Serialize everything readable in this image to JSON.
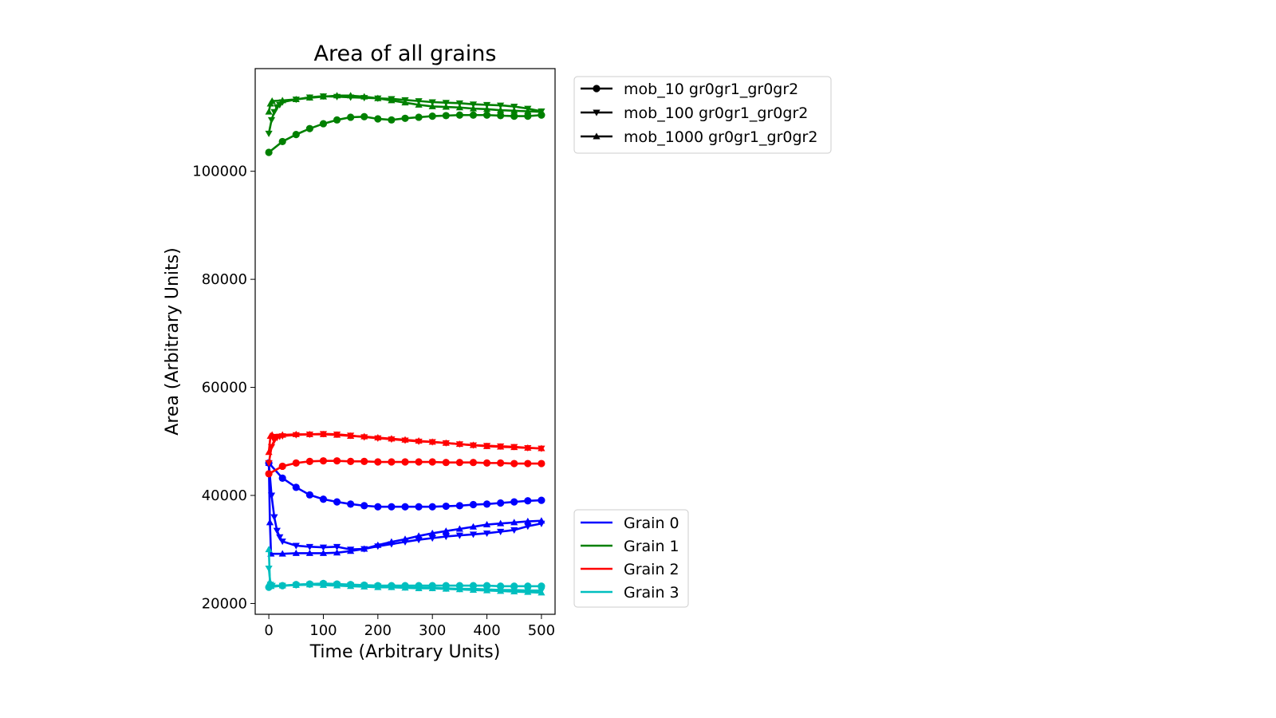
{
  "chart_data": {
    "type": "line",
    "title": "Area of all grains",
    "xlabel": "Time (Arbitrary Units)",
    "ylabel": "Area (Arbitrary Units)",
    "xlim": [
      -25,
      525
    ],
    "ylim": [
      18000,
      119000
    ],
    "xticks": [
      0,
      100,
      200,
      300,
      400,
      500
    ],
    "yticks": [
      20000,
      40000,
      60000,
      80000,
      100000
    ],
    "xtick_labels": [
      "0",
      "100",
      "200",
      "300",
      "400",
      "500"
    ],
    "ytick_labels": [
      "20000",
      "40000",
      "60000",
      "80000",
      "100000"
    ],
    "grid": false,
    "legend_runs": {
      "placement": "upper right outside",
      "entries": [
        {
          "label": "mob_10 gr0gr1_gr0gr2",
          "marker": "circle"
        },
        {
          "label": "mob_100 gr0gr1_gr0gr2",
          "marker": "triangle-down"
        },
        {
          "label": "mob_1000 gr0gr1_gr0gr2",
          "marker": "triangle-up"
        }
      ]
    },
    "legend_grains": {
      "placement": "lower right outside",
      "entries": [
        {
          "label": "Grain 0",
          "color": "#0000ff"
        },
        {
          "label": "Grain 1",
          "color": "#008000"
        },
        {
          "label": "Grain 2",
          "color": "#ff0000"
        },
        {
          "label": "Grain 3",
          "color": "#00bfbf"
        }
      ]
    },
    "series": [
      {
        "grain": "Grain 0",
        "run": "mob_10 gr0gr1_gr0gr2",
        "color": "#0000ff",
        "marker": "circle",
        "x": [
          0,
          25,
          50,
          75,
          100,
          125,
          150,
          175,
          200,
          225,
          250,
          275,
          300,
          325,
          350,
          375,
          400,
          425,
          450,
          475,
          500
        ],
        "y": [
          46000,
          43200,
          41500,
          40100,
          39300,
          38800,
          38400,
          38100,
          37900,
          37900,
          37900,
          37900,
          37900,
          38000,
          38100,
          38300,
          38400,
          38600,
          38800,
          39000,
          39100
        ]
      },
      {
        "grain": "Grain 0",
        "run": "mob_100 gr0gr1_gr0gr2",
        "color": "#0000ff",
        "marker": "triangle-down",
        "x": [
          0,
          5,
          10,
          15,
          20,
          25,
          50,
          75,
          100,
          125,
          150,
          175,
          200,
          225,
          250,
          275,
          300,
          325,
          350,
          375,
          400,
          425,
          450,
          475,
          500
        ],
        "y": [
          46000,
          40000,
          36000,
          33500,
          32300,
          31500,
          30700,
          30500,
          30400,
          30500,
          30000,
          30100,
          30600,
          31000,
          31400,
          31800,
          32100,
          32400,
          32600,
          32800,
          33000,
          33300,
          33600,
          34300,
          34800
        ]
      },
      {
        "grain": "Grain 0",
        "run": "mob_1000 gr0gr1_gr0gr2",
        "color": "#0000ff",
        "marker": "triangle-up",
        "x": [
          0,
          2,
          4,
          25,
          50,
          75,
          100,
          125,
          150,
          175,
          200,
          225,
          250,
          275,
          300,
          325,
          350,
          375,
          400,
          425,
          450,
          475,
          500
        ],
        "y": [
          46000,
          35000,
          29200,
          29200,
          29300,
          29300,
          29300,
          29400,
          29700,
          30100,
          30800,
          31400,
          31900,
          32500,
          33000,
          33400,
          33800,
          34200,
          34600,
          34800,
          35000,
          35200,
          35300
        ]
      },
      {
        "grain": "Grain 1",
        "run": "mob_10 gr0gr1_gr0gr2",
        "color": "#008000",
        "marker": "circle",
        "x": [
          0,
          25,
          50,
          75,
          100,
          125,
          150,
          175,
          200,
          225,
          250,
          275,
          300,
          325,
          350,
          375,
          400,
          425,
          450,
          475,
          500
        ],
        "y": [
          103500,
          105500,
          106800,
          107900,
          108800,
          109500,
          110000,
          110100,
          109700,
          109500,
          109800,
          110000,
          110200,
          110300,
          110400,
          110400,
          110400,
          110300,
          110200,
          110200,
          110400
        ]
      },
      {
        "grain": "Grain 1",
        "run": "mob_100 gr0gr1_gr0gr2",
        "color": "#008000",
        "marker": "triangle-down",
        "x": [
          0,
          5,
          10,
          15,
          20,
          25,
          50,
          75,
          100,
          125,
          150,
          175,
          200,
          225,
          250,
          275,
          300,
          325,
          350,
          375,
          400,
          425,
          450,
          475,
          500
        ],
        "y": [
          107000,
          109500,
          111000,
          111900,
          112300,
          112800,
          113300,
          113700,
          113900,
          113800,
          113700,
          113600,
          113500,
          113400,
          113200,
          113000,
          112800,
          112700,
          112600,
          112400,
          112300,
          112200,
          112000,
          111600,
          111100
        ]
      },
      {
        "grain": "Grain 1",
        "run": "mob_1000 gr0gr1_gr0gr2",
        "color": "#008000",
        "marker": "triangle-up",
        "x": [
          0,
          3,
          6,
          25,
          50,
          75,
          100,
          125,
          150,
          175,
          200,
          225,
          250,
          275,
          300,
          325,
          350,
          375,
          400,
          425,
          450,
          475,
          500
        ],
        "y": [
          111000,
          112500,
          113000,
          113100,
          113300,
          113600,
          113800,
          114000,
          114000,
          113800,
          113500,
          113100,
          112700,
          112300,
          112000,
          111900,
          111800,
          111600,
          111500,
          111300,
          111200,
          111100,
          111000
        ]
      },
      {
        "grain": "Grain 2",
        "run": "mob_10 gr0gr1_gr0gr2",
        "color": "#ff0000",
        "marker": "circle",
        "x": [
          0,
          25,
          50,
          75,
          100,
          125,
          150,
          175,
          200,
          225,
          250,
          275,
          300,
          325,
          350,
          375,
          400,
          425,
          450,
          475,
          500
        ],
        "y": [
          44000,
          45400,
          46000,
          46300,
          46400,
          46400,
          46300,
          46300,
          46200,
          46200,
          46200,
          46200,
          46200,
          46100,
          46100,
          46100,
          46000,
          46000,
          45900,
          45900,
          45900
        ]
      },
      {
        "grain": "Grain 2",
        "run": "mob_100 gr0gr1_gr0gr2",
        "color": "#ff0000",
        "marker": "triangle-down",
        "x": [
          0,
          5,
          10,
          15,
          20,
          25,
          50,
          75,
          100,
          125,
          150,
          175,
          200,
          225,
          250,
          275,
          300,
          325,
          350,
          375,
          400,
          425,
          450,
          475,
          500
        ],
        "y": [
          46000,
          49000,
          50200,
          50700,
          50900,
          51000,
          51200,
          51300,
          51400,
          51300,
          51100,
          50800,
          50600,
          50400,
          50200,
          50000,
          49900,
          49700,
          49500,
          49300,
          49200,
          49100,
          49000,
          48800,
          48700
        ]
      },
      {
        "grain": "Grain 2",
        "run": "mob_1000 gr0gr1_gr0gr2",
        "color": "#ff0000",
        "marker": "triangle-up",
        "x": [
          0,
          3,
          6,
          25,
          50,
          75,
          100,
          125,
          150,
          175,
          200,
          225,
          250,
          275,
          300,
          325,
          350,
          375,
          400,
          425,
          450,
          475,
          500
        ],
        "y": [
          48000,
          51000,
          51200,
          51200,
          51300,
          51300,
          51300,
          51200,
          51000,
          50900,
          50700,
          50500,
          50300,
          50100,
          49900,
          49700,
          49500,
          49300,
          49100,
          49000,
          48900,
          48800,
          48700
        ]
      },
      {
        "grain": "Grain 3",
        "run": "mob_10 gr0gr1_gr0gr2",
        "color": "#00bfbf",
        "marker": "circle",
        "x": [
          0,
          25,
          50,
          75,
          100,
          125,
          150,
          175,
          200,
          225,
          250,
          275,
          300,
          325,
          350,
          375,
          400,
          425,
          450,
          475,
          500
        ],
        "y": [
          23000,
          23300,
          23500,
          23600,
          23700,
          23600,
          23500,
          23400,
          23300,
          23300,
          23300,
          23300,
          23300,
          23300,
          23300,
          23300,
          23300,
          23200,
          23200,
          23200,
          23200
        ]
      },
      {
        "grain": "Grain 3",
        "run": "mob_100 gr0gr1_gr0gr2",
        "color": "#00bfbf",
        "marker": "triangle-down",
        "x": [
          0,
          3,
          6,
          25,
          50,
          75,
          100,
          125,
          150,
          175,
          200,
          225,
          250,
          275,
          300,
          325,
          350,
          375,
          400,
          425,
          450,
          475,
          500
        ],
        "y": [
          26500,
          23500,
          23300,
          23300,
          23400,
          23500,
          23600,
          23500,
          23400,
          23300,
          23200,
          23100,
          23000,
          22900,
          22900,
          22800,
          22700,
          22700,
          22600,
          22500,
          22500,
          22400,
          22400
        ]
      },
      {
        "grain": "Grain 3",
        "run": "mob_1000 gr0gr1_gr0gr2",
        "color": "#00bfbf",
        "marker": "triangle-up",
        "x": [
          0,
          2,
          4,
          25,
          50,
          75,
          100,
          125,
          150,
          175,
          200,
          225,
          250,
          275,
          300,
          325,
          350,
          375,
          400,
          425,
          450,
          475,
          500
        ],
        "y": [
          30000,
          24000,
          23200,
          23300,
          23400,
          23500,
          23400,
          23300,
          23200,
          23100,
          23000,
          23000,
          22900,
          22800,
          22800,
          22700,
          22600,
          22500,
          22400,
          22300,
          22200,
          22100,
          22000
        ]
      }
    ]
  }
}
